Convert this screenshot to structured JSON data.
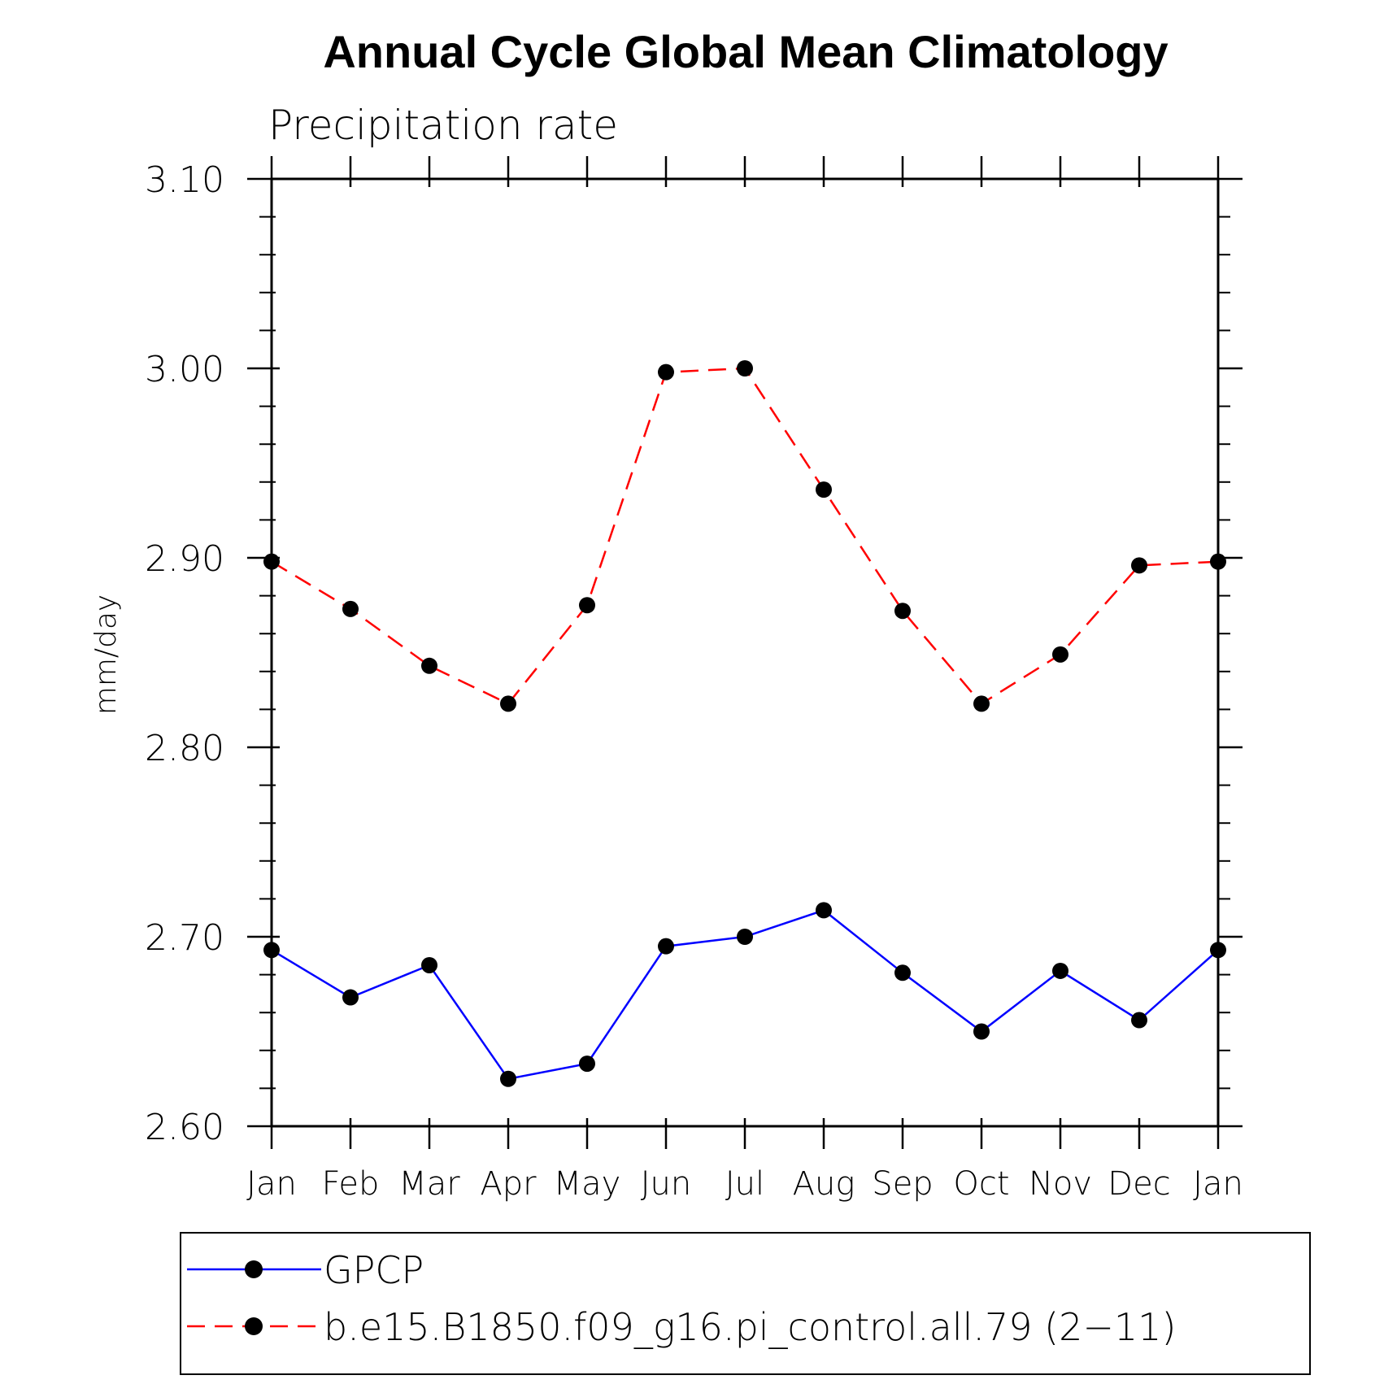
{
  "chart_data": {
    "type": "line",
    "title": "Annual Cycle Global Mean Climatology",
    "subtitle": "Precipitation rate",
    "xlabel": "",
    "ylabel": "mm/day",
    "categories": [
      "Jan",
      "Feb",
      "Mar",
      "Apr",
      "May",
      "Jun",
      "Jul",
      "Aug",
      "Sep",
      "Oct",
      "Nov",
      "Dec",
      "Jan"
    ],
    "ylim": [
      2.6,
      3.1
    ],
    "yticks": [
      "2.60",
      "2.70",
      "2.80",
      "2.90",
      "3.00",
      "3.10"
    ],
    "grid": false,
    "legend_position": "bottom",
    "series": [
      {
        "name": "GPCP",
        "color": "#0000ff",
        "dashed": false,
        "marker": "filled-circle",
        "values": [
          2.693,
          2.668,
          2.685,
          2.625,
          2.633,
          2.695,
          2.7,
          2.714,
          2.681,
          2.65,
          2.682,
          2.656,
          2.693
        ]
      },
      {
        "name": "b.e15.B1850.f09_g16.pi_control.all.79 (2−11)",
        "color": "#ff0000",
        "dashed": true,
        "marker": "filled-circle",
        "values": [
          2.898,
          2.873,
          2.843,
          2.823,
          2.875,
          2.998,
          3.0,
          2.936,
          2.872,
          2.823,
          2.849,
          2.896,
          2.898
        ]
      }
    ]
  }
}
